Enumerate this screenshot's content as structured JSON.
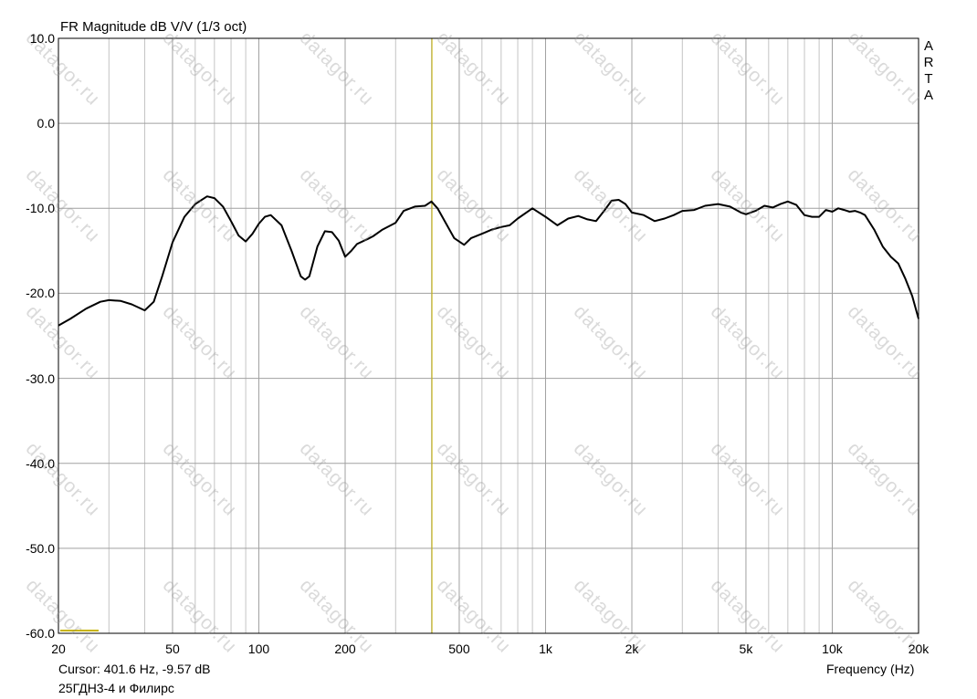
{
  "chart_data": {
    "type": "line",
    "title": "FR Magnitude dB V/V (1/3 oct)",
    "xlabel": "Frequency (Hz)",
    "ylabel": "",
    "x_scale": "log",
    "xlim": [
      20,
      20000
    ],
    "ylim": [
      -60,
      10
    ],
    "grid": true,
    "x_tick_labels": [
      "20",
      "50",
      "100",
      "200",
      "500",
      "1k",
      "2k",
      "5k",
      "10k",
      "20k"
    ],
    "x_tick_values": [
      20,
      50,
      100,
      200,
      500,
      1000,
      2000,
      5000,
      10000,
      20000
    ],
    "y_tick_labels": [
      "10.0",
      "0.0",
      "-10.0",
      "-20.0",
      "-30.0",
      "-40.0",
      "-50.0",
      "-60.0"
    ],
    "y_tick_values": [
      10,
      0,
      -10,
      -20,
      -30,
      -40,
      -50,
      -60
    ],
    "series": [
      {
        "color": "#000000",
        "x": [
          20,
          22,
          25,
          28,
          30,
          33,
          36,
          40,
          43,
          46,
          50,
          55,
          60,
          66,
          70,
          75,
          80,
          85,
          90,
          95,
          100,
          105,
          110,
          120,
          130,
          140,
          145,
          150,
          160,
          170,
          180,
          190,
          200,
          210,
          220,
          240,
          250,
          270,
          300,
          320,
          350,
          380,
          400,
          420,
          450,
          480,
          520,
          550,
          600,
          650,
          700,
          750,
          800,
          900,
          1000,
          1100,
          1200,
          1300,
          1400,
          1500,
          1600,
          1700,
          1800,
          1900,
          2000,
          2200,
          2400,
          2600,
          2800,
          3000,
          3300,
          3600,
          4000,
          4400,
          4800,
          5000,
          5400,
          5800,
          6200,
          6600,
          7000,
          7500,
          8000,
          8500,
          9000,
          9500,
          10000,
          10500,
          11000,
          11500,
          12000,
          12500,
          13000,
          14000,
          15000,
          16000,
          17000,
          18000,
          19000,
          20000
        ],
        "y": [
          -23.8,
          -23.0,
          -21.8,
          -21.0,
          -20.8,
          -20.9,
          -21.3,
          -22.0,
          -21.0,
          -18.0,
          -14.0,
          -11.0,
          -9.5,
          -8.6,
          -8.8,
          -9.8,
          -11.5,
          -13.2,
          -13.9,
          -13.0,
          -11.8,
          -11.0,
          -10.8,
          -12.0,
          -15.0,
          -18.0,
          -18.4,
          -18.0,
          -14.5,
          -12.7,
          -12.8,
          -13.8,
          -15.7,
          -15.0,
          -14.2,
          -13.6,
          -13.3,
          -12.5,
          -11.7,
          -10.3,
          -9.8,
          -9.7,
          -9.2,
          -10.0,
          -11.8,
          -13.5,
          -14.3,
          -13.5,
          -13.0,
          -12.5,
          -12.2,
          -12.0,
          -11.2,
          -10.0,
          -11.0,
          -12.0,
          -11.2,
          -10.9,
          -11.3,
          -11.5,
          -10.3,
          -9.1,
          -9.0,
          -9.5,
          -10.5,
          -10.8,
          -11.5,
          -11.2,
          -10.8,
          -10.3,
          -10.2,
          -9.7,
          -9.5,
          -9.8,
          -10.5,
          -10.7,
          -10.3,
          -9.7,
          -9.9,
          -9.5,
          -9.2,
          -9.6,
          -10.8,
          -11.0,
          -11.0,
          -10.2,
          -10.4,
          -10.0,
          -10.2,
          -10.4,
          -10.3,
          -10.5,
          -10.8,
          -12.5,
          -14.5,
          -15.7,
          -16.5,
          -18.3,
          -20.3,
          -23.0
        ]
      }
    ],
    "cursor": {
      "frequency": 401.6,
      "value": -9.57,
      "color": "#c8b400"
    },
    "annotations": {
      "cursor_text": "Cursor: 401.6 Hz, -9.57 dB",
      "legend_text": "25ГДН3-4 и Филирс",
      "logo_letters": [
        "A",
        "R",
        "T",
        "A"
      ],
      "watermark": "datagor.ru"
    },
    "colors": {
      "grid": "#a0a0a0",
      "trace": "#000000",
      "cursor": "#c8b400",
      "legend_swatch": "#c8b400"
    }
  }
}
